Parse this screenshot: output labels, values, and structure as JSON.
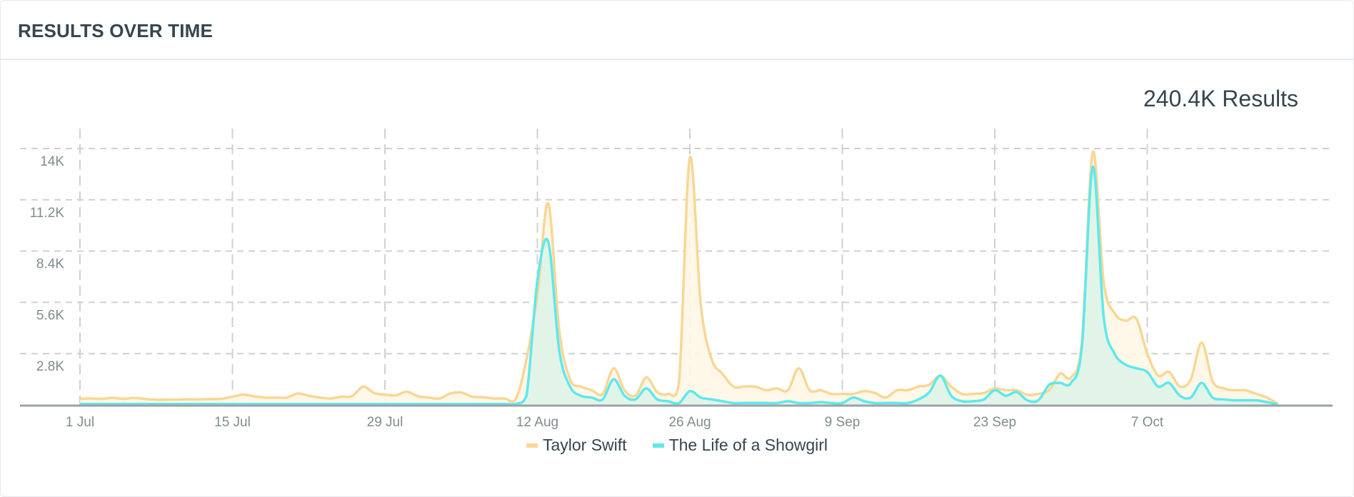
{
  "header": {
    "title": "RESULTS OVER TIME"
  },
  "summary": {
    "total": "240.4K Results"
  },
  "chart_data": {
    "type": "area",
    "title": "",
    "xlabel": "",
    "ylabel": "",
    "x_start": "2025-07-01",
    "x_end": "2025-10-20",
    "ylim": [
      0,
      14000
    ],
    "y_ticks": [
      "2.8K",
      "5.6K",
      "8.4K",
      "11.2K",
      "14K"
    ],
    "y_tick_values": [
      2800,
      5600,
      8400,
      11200,
      14000
    ],
    "x_ticks": [
      "1 Jul",
      "15 Jul",
      "29 Jul",
      "12 Aug",
      "26 Aug",
      "9 Sep",
      "23 Sep",
      "7 Oct"
    ],
    "x_tick_dates": [
      "2025-07-01",
      "2025-07-15",
      "2025-07-29",
      "2025-08-12",
      "2025-08-26",
      "2025-09-09",
      "2025-09-23",
      "2025-10-07"
    ],
    "grid": true,
    "legend": "bottom",
    "series": [
      {
        "name": "Taylor Swift",
        "color": "#f8d795",
        "fill": "#fff6e6",
        "values": [
          330,
          350,
          330,
          380,
          330,
          380,
          320,
          280,
          290,
          290,
          300,
          300,
          320,
          330,
          450,
          560,
          470,
          400,
          400,
          400,
          620,
          500,
          400,
          350,
          450,
          480,
          1000,
          650,
          560,
          520,
          720,
          480,
          400,
          350,
          620,
          680,
          450,
          420,
          350,
          350,
          300,
          2500,
          6000,
          11000,
          4100,
          1400,
          1000,
          800,
          600,
          2000,
          800,
          500,
          1500,
          700,
          600,
          1200,
          13500,
          5500,
          2500,
          1700,
          1000,
          1000,
          1000,
          800,
          900,
          800,
          2000,
          800,
          800,
          600,
          600,
          600,
          750,
          650,
          400,
          800,
          800,
          1000,
          1100,
          1600,
          1000,
          600,
          600,
          650,
          900,
          800,
          800,
          550,
          600,
          800,
          1700,
          1500,
          3500,
          13800,
          6700,
          5000,
          4600,
          4700,
          2800,
          1600,
          1800,
          1000,
          1400,
          3400,
          1300,
          900,
          800,
          800,
          600,
          400,
          50
        ]
      },
      {
        "name": "The Life of a Showgirl",
        "color": "#5ee8ee",
        "fill": "#dff3e8",
        "values": [
          50,
          50,
          50,
          50,
          50,
          50,
          50,
          50,
          50,
          50,
          50,
          50,
          50,
          50,
          50,
          50,
          50,
          50,
          50,
          50,
          50,
          50,
          50,
          50,
          50,
          50,
          50,
          50,
          50,
          50,
          50,
          50,
          50,
          50,
          50,
          50,
          50,
          50,
          50,
          50,
          50,
          500,
          6800,
          8900,
          3000,
          1000,
          500,
          400,
          300,
          1400,
          500,
          300,
          900,
          300,
          200,
          100,
          750,
          400,
          300,
          200,
          100,
          100,
          100,
          100,
          100,
          200,
          100,
          100,
          150,
          100,
          100,
          400,
          200,
          100,
          100,
          100,
          100,
          300,
          700,
          1600,
          500,
          200,
          200,
          300,
          800,
          500,
          700,
          250,
          250,
          1100,
          1200,
          1200,
          3200,
          13000,
          4800,
          2800,
          2200,
          2000,
          1800,
          1000,
          1200,
          500,
          400,
          1200,
          400,
          300,
          250,
          250,
          250,
          150,
          20
        ]
      }
    ]
  }
}
